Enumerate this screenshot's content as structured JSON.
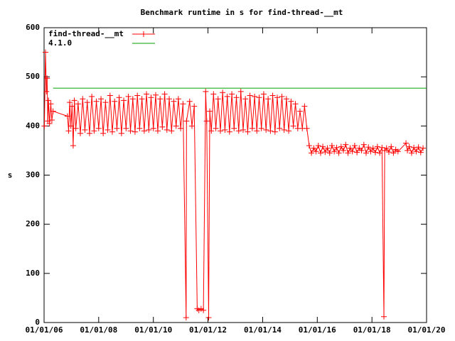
{
  "chart_data": {
    "type": "line",
    "title": "Benchmark runtime in s for find-thread-__mt",
    "y_label": "s",
    "legend": "top-left",
    "xlim": [
      "2006-01-01",
      "2020-01-01"
    ],
    "xticks": [
      {
        "value": "2006-01-01",
        "label": "01/01/06"
      },
      {
        "value": "2008-01-01",
        "label": "01/01/08"
      },
      {
        "value": "2010-01-01",
        "label": "01/01/10"
      },
      {
        "value": "2012-01-01",
        "label": "01/01/12"
      },
      {
        "value": "2014-01-01",
        "label": "01/01/14"
      },
      {
        "value": "2016-01-01",
        "label": "01/01/16"
      },
      {
        "value": "2018-01-01",
        "label": "01/01/18"
      },
      {
        "value": "2020-01-01",
        "label": "01/01/20"
      }
    ],
    "ylim": [
      0,
      600
    ],
    "yticks": [
      0,
      100,
      200,
      300,
      400,
      500,
      600
    ],
    "series": [
      {
        "name": "find-thread-__mt",
        "color": "#ff0000",
        "marker": "+",
        "x": [
          "2006-01-05",
          "2006-01-20",
          "2006-02-01",
          "2006-02-10",
          "2006-02-20",
          "2006-03-01",
          "2006-03-15",
          "2006-04-01",
          "2006-04-15",
          "2006-05-01",
          "2006-11-10",
          "2006-11-25",
          "2006-12-10",
          "2006-12-25",
          "2007-01-10",
          "2007-01-25",
          "2007-02-10",
          "2007-03-01",
          "2007-04-01",
          "2007-05-01",
          "2007-06-01",
          "2007-07-01",
          "2007-08-01",
          "2007-09-01",
          "2007-10-01",
          "2007-11-01",
          "2007-12-01",
          "2008-01-01",
          "2008-02-01",
          "2008-03-01",
          "2008-04-01",
          "2008-05-01",
          "2008-06-01",
          "2008-07-01",
          "2008-08-01",
          "2008-09-01",
          "2008-10-01",
          "2008-11-01",
          "2008-12-01",
          "2009-01-01",
          "2009-02-01",
          "2009-03-01",
          "2009-04-01",
          "2009-05-01",
          "2009-06-01",
          "2009-07-01",
          "2009-08-01",
          "2009-09-01",
          "2009-10-01",
          "2009-11-01",
          "2009-12-01",
          "2010-01-01",
          "2010-02-01",
          "2010-03-01",
          "2010-04-01",
          "2010-05-01",
          "2010-06-01",
          "2010-07-01",
          "2010-08-01",
          "2010-09-01",
          "2010-10-01",
          "2010-11-01",
          "2010-12-01",
          "2011-01-01",
          "2011-02-01",
          "2011-03-15",
          "2011-03-20",
          "2011-05-01",
          "2011-06-01",
          "2011-07-01",
          "2011-08-10",
          "2011-09-01",
          "2011-10-01",
          "2011-11-01",
          "2011-12-01",
          "2011-12-15",
          "2012-01-10",
          "2012-01-25",
          "2012-02-15",
          "2012-03-15",
          "2012-04-15",
          "2012-05-15",
          "2012-06-15",
          "2012-07-15",
          "2012-08-15",
          "2012-09-15",
          "2012-10-15",
          "2012-11-15",
          "2012-12-15",
          "2013-01-15",
          "2013-02-15",
          "2013-03-15",
          "2013-04-15",
          "2013-05-15",
          "2013-06-15",
          "2013-07-15",
          "2013-08-15",
          "2013-09-15",
          "2013-10-15",
          "2013-11-15",
          "2013-12-15",
          "2014-01-15",
          "2014-02-15",
          "2014-03-15",
          "2014-04-15",
          "2014-05-15",
          "2014-06-15",
          "2014-07-15",
          "2014-08-15",
          "2014-09-15",
          "2014-10-15",
          "2014-11-15",
          "2014-12-15",
          "2015-01-15",
          "2015-02-15",
          "2015-03-15",
          "2015-04-15",
          "2015-05-15",
          "2015-06-15",
          "2015-07-15",
          "2015-08-15",
          "2015-09-15",
          "2015-10-15",
          "2015-11-15",
          "2015-12-15",
          "2016-01-15",
          "2016-02-15",
          "2016-03-15",
          "2016-04-15",
          "2016-05-15",
          "2016-06-15",
          "2016-07-15",
          "2016-08-15",
          "2016-09-15",
          "2016-10-15",
          "2016-11-15",
          "2016-12-15",
          "2017-01-15",
          "2017-02-15",
          "2017-03-15",
          "2017-04-15",
          "2017-05-15",
          "2017-06-15",
          "2017-07-15",
          "2017-08-15",
          "2017-09-15",
          "2017-10-15",
          "2017-11-15",
          "2017-12-15",
          "2018-01-15",
          "2018-02-15",
          "2018-03-15",
          "2018-04-15",
          "2018-05-15",
          "2018-06-10",
          "2018-06-20",
          "2018-07-15",
          "2018-08-15",
          "2018-09-15",
          "2018-10-15",
          "2018-11-15",
          "2018-12-15",
          "2019-04-01",
          "2019-04-20",
          "2019-05-15",
          "2019-06-15",
          "2019-07-15",
          "2019-08-15",
          "2019-09-15",
          "2019-10-15",
          "2019-11-15"
        ],
        "values": [
          400,
          550,
          470,
          497,
          410,
          452,
          405,
          445,
          412,
          430,
          420,
          390,
          448,
          400,
          440,
          360,
          452,
          395,
          445,
          385,
          455,
          392,
          448,
          385,
          460,
          390,
          450,
          395,
          455,
          385,
          448,
          392,
          462,
          388,
          450,
          395,
          458,
          385,
          452,
          395,
          460,
          390,
          455,
          388,
          462,
          395,
          455,
          390,
          465,
          392,
          458,
          395,
          463,
          390,
          455,
          398,
          465,
          392,
          455,
          390,
          450,
          400,
          455,
          395,
          445,
          10,
          410,
          450,
          400,
          440,
          28,
          25,
          28,
          25,
          470,
          410,
          10,
          430,
          390,
          465,
          395,
          455,
          390,
          468,
          392,
          460,
          388,
          465,
          395,
          458,
          390,
          470,
          392,
          455,
          388,
          462,
          395,
          460,
          390,
          458,
          395,
          465,
          392,
          455,
          390,
          462,
          388,
          458,
          395,
          460,
          392,
          455,
          390,
          450,
          400,
          445,
          395,
          430,
          395,
          440,
          395,
          360,
          345,
          355,
          348,
          360,
          345,
          358,
          347,
          355,
          345,
          360,
          348,
          356,
          345,
          358,
          350,
          362,
          345,
          355,
          348,
          360,
          346,
          355,
          350,
          362,
          345,
          357,
          348,
          355,
          346,
          358,
          345,
          356,
          12,
          350,
          355,
          347,
          358,
          345,
          352,
          348,
          365,
          350,
          358,
          345,
          356,
          348,
          357,
          346,
          355
        ]
      },
      {
        "name": "4.1.0",
        "color": "#00a000",
        "x": [
          "2006-05-01",
          "2020-01-01"
        ],
        "values": [
          477,
          477
        ]
      }
    ]
  }
}
